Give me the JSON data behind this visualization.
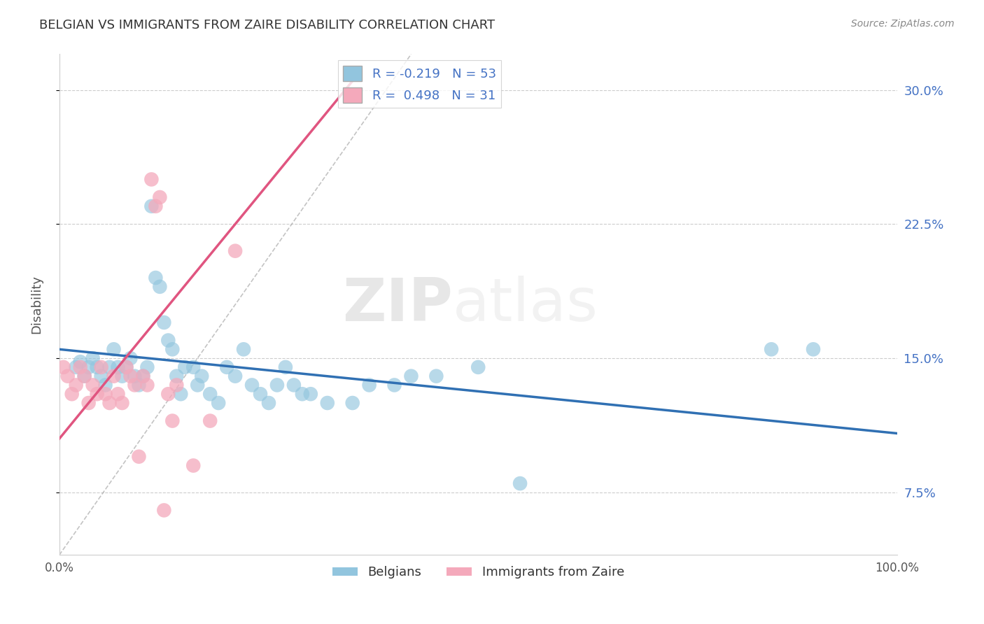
{
  "title": "BELGIAN VS IMMIGRANTS FROM ZAIRE DISABILITY CORRELATION CHART",
  "source": "Source: ZipAtlas.com",
  "ylabel": "Disability",
  "xmin": 0.0,
  "xmax": 1.0,
  "ymin": 0.04,
  "ymax": 0.32,
  "ytick_positions": [
    0.075,
    0.15,
    0.225,
    0.3
  ],
  "ytick_labels_right": [
    "7.5%",
    "15.0%",
    "22.5%",
    "30.0%"
  ],
  "belgian_R": -0.219,
  "belgian_N": 53,
  "zaire_R": 0.498,
  "zaire_N": 31,
  "belgian_color": "#92c5de",
  "zaire_color": "#f4a9bb",
  "belgian_line_color": "#3070b3",
  "zaire_line_color": "#e05580",
  "legend_label_1": "Belgians",
  "legend_label_2": "Immigrants from Zaire",
  "watermark_zip": "ZIP",
  "watermark_atlas": "atlas",
  "background_color": "#ffffff",
  "grid_color": "#cccccc",
  "title_color": "#333333",
  "label_color": "#4472c4",
  "belgian_x": [
    0.02,
    0.025,
    0.03,
    0.035,
    0.04,
    0.045,
    0.05,
    0.055,
    0.06,
    0.065,
    0.07,
    0.075,
    0.08,
    0.085,
    0.09,
    0.095,
    0.1,
    0.105,
    0.11,
    0.115,
    0.12,
    0.125,
    0.13,
    0.135,
    0.14,
    0.145,
    0.15,
    0.16,
    0.165,
    0.17,
    0.18,
    0.19,
    0.2,
    0.21,
    0.22,
    0.23,
    0.24,
    0.25,
    0.26,
    0.27,
    0.28,
    0.29,
    0.3,
    0.32,
    0.35,
    0.37,
    0.4,
    0.42,
    0.45,
    0.5,
    0.55,
    0.85,
    0.9
  ],
  "belgian_y": [
    0.145,
    0.148,
    0.14,
    0.145,
    0.15,
    0.145,
    0.14,
    0.135,
    0.145,
    0.155,
    0.145,
    0.14,
    0.145,
    0.15,
    0.14,
    0.135,
    0.14,
    0.145,
    0.235,
    0.195,
    0.19,
    0.17,
    0.16,
    0.155,
    0.14,
    0.13,
    0.145,
    0.145,
    0.135,
    0.14,
    0.13,
    0.125,
    0.145,
    0.14,
    0.155,
    0.135,
    0.13,
    0.125,
    0.135,
    0.145,
    0.135,
    0.13,
    0.13,
    0.125,
    0.125,
    0.135,
    0.135,
    0.14,
    0.14,
    0.145,
    0.08,
    0.155,
    0.155
  ],
  "zaire_x": [
    0.005,
    0.01,
    0.015,
    0.02,
    0.025,
    0.03,
    0.035,
    0.04,
    0.045,
    0.05,
    0.055,
    0.06,
    0.065,
    0.07,
    0.075,
    0.08,
    0.085,
    0.09,
    0.095,
    0.1,
    0.105,
    0.11,
    0.115,
    0.12,
    0.125,
    0.13,
    0.135,
    0.14,
    0.16,
    0.18,
    0.21
  ],
  "zaire_y": [
    0.145,
    0.14,
    0.13,
    0.135,
    0.145,
    0.14,
    0.125,
    0.135,
    0.13,
    0.145,
    0.13,
    0.125,
    0.14,
    0.13,
    0.125,
    0.145,
    0.14,
    0.135,
    0.095,
    0.14,
    0.135,
    0.25,
    0.235,
    0.24,
    0.065,
    0.13,
    0.115,
    0.135,
    0.09,
    0.115,
    0.21
  ],
  "bel_line_x0": 0.0,
  "bel_line_x1": 1.0,
  "bel_line_y0": 0.155,
  "bel_line_y1": 0.108,
  "zaire_line_x0": 0.0,
  "zaire_line_x1": 0.35,
  "zaire_line_y0": 0.105,
  "zaire_line_y1": 0.305,
  "diag_line_x0": 0.0,
  "diag_line_x1": 0.42,
  "diag_line_y0": 0.04,
  "diag_line_y1": 0.32
}
